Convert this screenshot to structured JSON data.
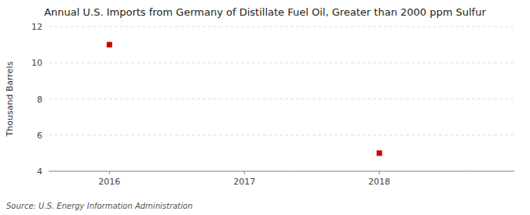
{
  "chart_data": {
    "type": "scatter",
    "title": "Annual U.S. Imports from Germany of Distillate Fuel Oil, Greater than 2000 ppm Sulfur",
    "ylabel": "Thousand Barrels",
    "source": "Source: U.S. Energy Information Administration",
    "x": [
      2016,
      2018
    ],
    "values": [
      11,
      5
    ],
    "color": "#cc0000",
    "marker": "square",
    "xlim": [
      2015.55,
      2019.0
    ],
    "ylim": [
      4,
      12
    ],
    "xticks": [
      2016,
      2017,
      2018
    ],
    "yticks": [
      4,
      6,
      8,
      10,
      12
    ],
    "grid": true
  }
}
